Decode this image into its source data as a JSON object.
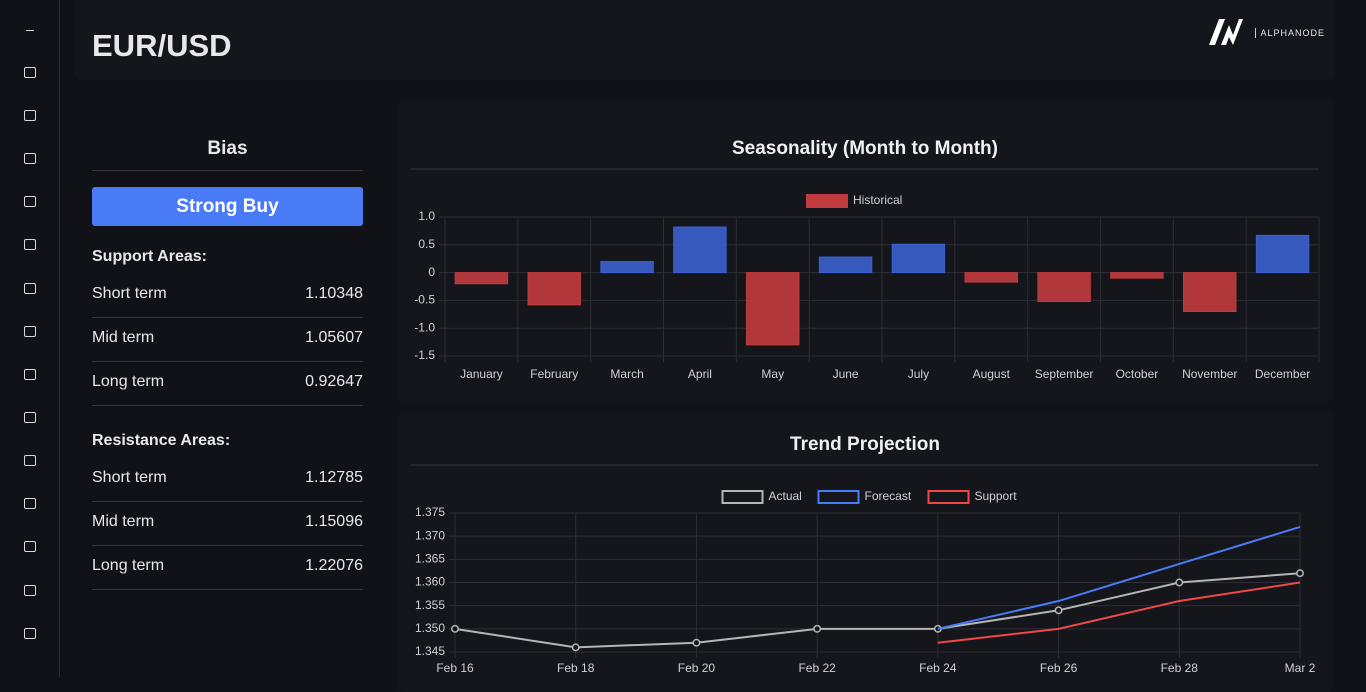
{
  "header": {
    "title": "EUR/USD",
    "logo_text": "ALPHANODE"
  },
  "bias": {
    "title": "Bias",
    "signal": "Strong Buy",
    "support": {
      "title": "Support Areas:",
      "rows": [
        [
          "Short term",
          "1.10348"
        ],
        [
          "Mid term",
          "1.05607"
        ],
        [
          "Long term",
          "0.92647"
        ]
      ]
    },
    "resistance": {
      "title": "Resistance Areas:",
      "rows": [
        [
          "Short term",
          "1.12785"
        ],
        [
          "Mid term",
          "1.15096"
        ],
        [
          "Long term",
          "1.22076"
        ]
      ]
    }
  },
  "chart_data": [
    {
      "type": "bar",
      "title": "Seasonality (Month to Month)",
      "categories": [
        "January",
        "February",
        "March",
        "April",
        "May",
        "June",
        "July",
        "August",
        "September",
        "October",
        "November",
        "December"
      ],
      "series": [
        {
          "name": "Historical",
          "color": "#c23b3f",
          "values": [
            -0.2,
            -0.58,
            0.2,
            0.82,
            -1.3,
            0.28,
            0.51,
            -0.17,
            -0.52,
            -0.1,
            -0.7,
            0.67
          ]
        }
      ],
      "positive_color": "#3a60cf",
      "ylim": [
        -1.5,
        1
      ],
      "yticks": [
        {
          "value": 1,
          "label": "1.0"
        },
        0.5,
        0,
        -0.5,
        {
          "value": -1,
          "label": "-1.0"
        },
        -1.5
      ],
      "grid": true,
      "legend": "top"
    },
    {
      "type": "line",
      "title": "Trend Projection",
      "categories": [
        "Feb 16",
        "Feb 18",
        "Feb 20",
        "Feb 22",
        "Feb 24",
        "Feb 26",
        "Feb 28",
        "Mar 2"
      ],
      "series": [
        {
          "name": "Actual",
          "color": "#b5b5b5",
          "markers": true,
          "values": [
            1.35,
            1.346,
            1.347,
            1.35,
            1.35,
            1.354,
            1.36,
            1.362
          ]
        },
        {
          "name": "Forecast",
          "color": "#4a7bf7",
          "values": [
            null,
            null,
            null,
            null,
            1.35,
            1.356,
            1.364,
            1.372
          ]
        },
        {
          "name": "Support",
          "color": "#f04848",
          "values": [
            null,
            null,
            null,
            null,
            1.347,
            1.35,
            1.356,
            1.36
          ]
        }
      ],
      "ylim": [
        1.345,
        1.375
      ],
      "yticks": [
        1.375,
        {
          "value": 1.37,
          "label": "1.370"
        },
        1.365,
        {
          "value": 1.36,
          "label": "1.360"
        },
        1.355,
        {
          "value": 1.35,
          "label": "1.350"
        },
        1.345
      ],
      "grid": true,
      "legend": "top"
    }
  ]
}
